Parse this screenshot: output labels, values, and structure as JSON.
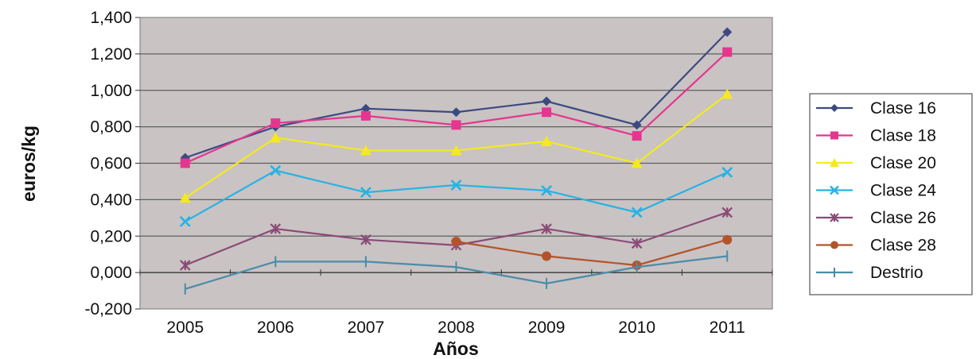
{
  "chart_data": {
    "type": "line",
    "xlabel": "Años",
    "ylabel": "euros/kg",
    "ylim": [
      -0.2,
      1.4
    ],
    "ytick_values": [
      -0.2,
      0,
      0.2,
      0.4,
      0.6,
      0.8,
      1.0,
      1.2,
      1.4
    ],
    "ytick_labels": [
      "-0,200",
      "0,000",
      "0,200",
      "0,400",
      "0,600",
      "0,800",
      "1,000",
      "1,200",
      "1,400"
    ],
    "categories": [
      "2005",
      "2006",
      "2007",
      "2008",
      "2009",
      "2010",
      "2011"
    ],
    "grid": true,
    "plot_background": "#c9c3c4",
    "legend_position": "right",
    "series": [
      {
        "name": "Clase 16",
        "color": "#3c4a82",
        "marker": "diamond",
        "values": [
          0.63,
          0.8,
          0.9,
          0.88,
          0.94,
          0.81,
          1.32
        ]
      },
      {
        "name": "Clase 18",
        "color": "#e6358f",
        "marker": "square",
        "values": [
          0.6,
          0.82,
          0.86,
          0.81,
          0.88,
          0.75,
          1.21
        ]
      },
      {
        "name": "Clase 20",
        "color": "#f4ea1d",
        "marker": "triangle",
        "values": [
          0.41,
          0.74,
          0.67,
          0.67,
          0.72,
          0.6,
          0.98
        ]
      },
      {
        "name": "Clase 24",
        "color": "#26b3e3",
        "marker": "x",
        "values": [
          0.28,
          0.56,
          0.44,
          0.48,
          0.45,
          0.33,
          0.55
        ]
      },
      {
        "name": "Clase 26",
        "color": "#8b4a76",
        "marker": "star",
        "values": [
          0.04,
          0.24,
          0.18,
          0.15,
          0.24,
          0.16,
          0.33
        ]
      },
      {
        "name": "Clase 28",
        "color": "#b4532a",
        "marker": "circle",
        "values": [
          null,
          null,
          null,
          0.17,
          0.09,
          0.04,
          0.18
        ]
      },
      {
        "name": "Destrio",
        "color": "#4a8ca8",
        "marker": "plus",
        "values": [
          -0.09,
          0.06,
          0.06,
          0.03,
          -0.06,
          0.03,
          0.09
        ]
      }
    ]
  }
}
